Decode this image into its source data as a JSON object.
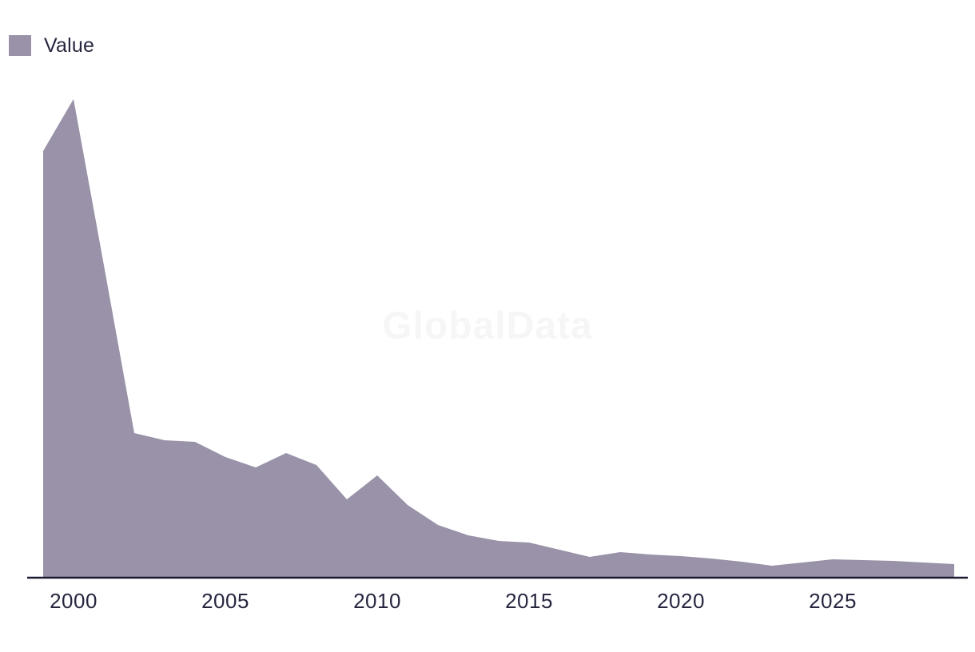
{
  "legend": {
    "label": "Value"
  },
  "watermark": {
    "text": "GlobalData"
  },
  "colors": {
    "series_fill": "#9992a8",
    "axis_line": "#1a1a33",
    "text": "#262640",
    "watermark": "#f6f6f6"
  },
  "chart_data": {
    "type": "area",
    "title": "",
    "xlabel": "",
    "ylabel": "",
    "x": [
      1999,
      2000,
      2001,
      2002,
      2003,
      2004,
      2005,
      2006,
      2007,
      2008,
      2009,
      2010,
      2011,
      2012,
      2013,
      2014,
      2015,
      2016,
      2017,
      2018,
      2019,
      2020,
      2021,
      2022,
      2023,
      2024,
      2025,
      2026,
      2027,
      2028,
      2029
    ],
    "series": [
      {
        "name": "Value",
        "values": [
          533,
          598,
          390,
          180,
          171,
          169,
          150,
          137,
          155,
          140,
          97,
          127,
          90,
          65,
          52,
          45,
          43,
          34,
          25,
          31,
          28,
          26,
          23,
          19,
          14,
          18,
          22,
          21,
          20,
          18,
          16
        ]
      }
    ],
    "x_ticks": [
      2000,
      2005,
      2010,
      2015,
      2020,
      2025
    ],
    "xlim": [
      1999,
      2030
    ],
    "ylim": [
      0,
      660
    ],
    "grid": false,
    "y_axis_visible": false,
    "legend_position": "top-left"
  }
}
